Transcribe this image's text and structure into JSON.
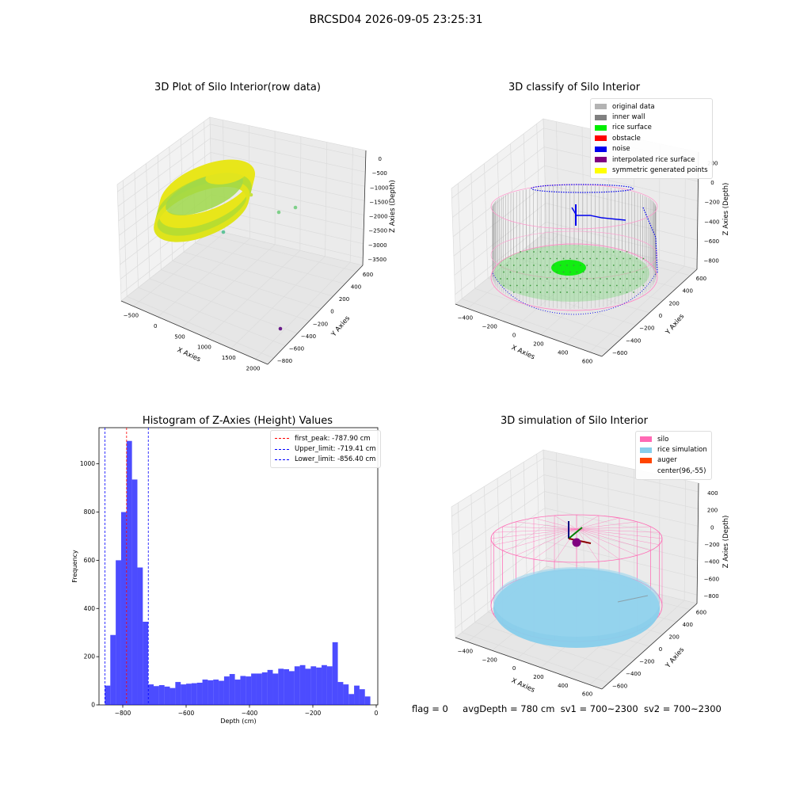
{
  "suptitle": "BRCSD04 2026-09-05 23:25:31",
  "footer": {
    "flag": "flag = 0",
    "avg_depth": "avgDepth = 780 cm",
    "sv1": "sv1 = 700~2300",
    "sv2": "sv2 = 700~2300"
  },
  "panels": {
    "raw": {
      "title": "3D Plot of Silo Interior(row data)",
      "xlabel": "X Axies",
      "ylabel": "Y Axies",
      "zlabel": "Z Axies (Depth)",
      "xticks": [
        "−500",
        "0",
        "500",
        "1000",
        "1500",
        "2000"
      ],
      "yticks": [
        "600",
        "400",
        "200",
        "0",
        "−200",
        "−400",
        "−600",
        "−800"
      ],
      "zticks": [
        "0",
        "−500",
        "−1000",
        "−1500",
        "−2000",
        "−2500",
        "−3000",
        "−3500"
      ]
    },
    "classify": {
      "title": "3D classify of Silo Interior",
      "xlabel": "X Axies",
      "ylabel": "Y Axies",
      "zlabel": "Z Axies (Depth)",
      "xticks": [
        "−400",
        "−200",
        "0",
        "200",
        "400",
        "600"
      ],
      "yticks": [
        "600",
        "400",
        "200",
        "0",
        "−200",
        "−400",
        "−600"
      ],
      "zticks": [
        "200",
        "0",
        "−200",
        "−400",
        "−600",
        "−800"
      ],
      "legend": [
        {
          "label": "original data",
          "color": "#b3b3b3"
        },
        {
          "label": "inner wall",
          "color": "#808080"
        },
        {
          "label": "rice surface",
          "color": "#00ee00"
        },
        {
          "label": "obstacle",
          "color": "#ff0000"
        },
        {
          "label": "noise",
          "color": "#0000ee"
        },
        {
          "label": "interpolated rice surface",
          "color": "#800080"
        },
        {
          "label": "symmetric generated points",
          "color": "#ffff00"
        }
      ]
    },
    "simulation": {
      "title": "3D simulation of Silo Interior",
      "xlabel": "X Axies",
      "ylabel": "Y Axies",
      "zlabel": "Z Axies (Depth)",
      "xticks": [
        "−400",
        "−200",
        "0",
        "200",
        "400",
        "600"
      ],
      "yticks": [
        "600",
        "400",
        "200",
        "0",
        "−200",
        "−400",
        "−600"
      ],
      "zticks": [
        "400",
        "200",
        "0",
        "−200",
        "−400",
        "−600",
        "−800"
      ],
      "legend": [
        {
          "label": "silo",
          "color": "#ff69b4"
        },
        {
          "label": "rice simulation",
          "color": "#87ceeb"
        },
        {
          "label": "auger",
          "color": "#ff4500"
        },
        {
          "label": "center(96,-55)",
          "color": ""
        }
      ]
    }
  },
  "chart_data": {
    "type": "bar",
    "title": "Histogram of Z-Axies (Height) Values",
    "xlabel": "Depth (cm)",
    "ylabel": "Frequency",
    "xlim": [
      -875,
      5
    ],
    "ylim": [
      0,
      1150
    ],
    "xticks": [
      -800,
      -600,
      -400,
      -200,
      0
    ],
    "yticks": [
      0,
      200,
      400,
      600,
      800,
      1000
    ],
    "bin_start": -856.4,
    "bin_width": 17.1,
    "counts": [
      80,
      290,
      600,
      800,
      1095,
      935,
      570,
      345,
      85,
      78,
      82,
      76,
      70,
      95,
      85,
      88,
      90,
      92,
      105,
      102,
      105,
      100,
      118,
      128,
      105,
      120,
      118,
      130,
      130,
      135,
      145,
      130,
      150,
      148,
      140,
      160,
      165,
      150,
      160,
      155,
      165,
      160,
      260,
      95,
      85,
      45,
      80,
      65,
      35
    ],
    "color": "#0000ff",
    "lines": [
      {
        "name": "first_peak: -787.90 cm",
        "x": -787.9,
        "color": "#ff0000"
      },
      {
        "name": "Upper_limit: -719.41 cm",
        "x": -719.41,
        "color": "#0000ff"
      },
      {
        "name": "Lower_limit: -856.40 cm",
        "x": -856.4,
        "color": "#0000ff"
      }
    ],
    "legend_position": "upper right"
  }
}
